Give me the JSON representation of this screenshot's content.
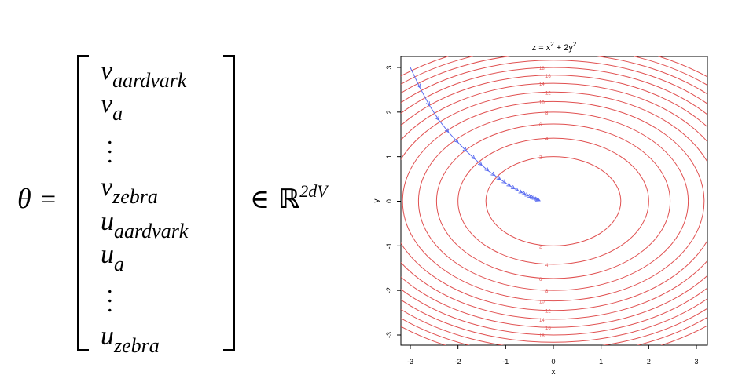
{
  "equation": {
    "lhs_symbol": "θ",
    "equals": "=",
    "entries": [
      {
        "base": "v",
        "sub": "aardvark"
      },
      {
        "base": "v",
        "sub": "a"
      },
      {
        "dots": true
      },
      {
        "base": "v",
        "sub": "zebra"
      },
      {
        "base": "u",
        "sub": "aardvark"
      },
      {
        "base": "u",
        "sub": "a"
      },
      {
        "dots": true
      },
      {
        "base": "u",
        "sub": "zebra"
      }
    ],
    "membership": "∈",
    "space": "ℝ",
    "exponent": "2dV"
  },
  "plot": {
    "title_main": "z = x",
    "title_sup1": "2",
    "title_mid": " + 2y",
    "title_sup2": "2",
    "xlabel": "x",
    "ylabel": "y",
    "xticks": [
      -3,
      -2,
      -1,
      0,
      1,
      2,
      3
    ],
    "yticks": [
      -3,
      -2,
      -1,
      0,
      1,
      2,
      3
    ],
    "xlim": [
      -3,
      3
    ],
    "ylim": [
      -3,
      3
    ],
    "contour_levels": [
      2,
      4,
      6,
      8,
      10,
      12,
      14,
      16,
      18,
      20,
      22,
      24,
      26
    ],
    "contour_color": "#e05050",
    "path_color": "#5a6cf0",
    "descent_path": [
      [
        -3.0,
        3.0
      ],
      [
        -2.8,
        2.55
      ],
      [
        -2.6,
        2.15
      ],
      [
        -2.4,
        1.82
      ],
      [
        -2.2,
        1.55
      ],
      [
        -2.0,
        1.32
      ],
      [
        -1.82,
        1.12
      ],
      [
        -1.65,
        0.95
      ],
      [
        -1.5,
        0.81
      ],
      [
        -1.36,
        0.68
      ],
      [
        -1.23,
        0.58
      ],
      [
        -1.11,
        0.49
      ],
      [
        -1.0,
        0.41
      ],
      [
        -0.9,
        0.34
      ],
      [
        -0.81,
        0.28
      ],
      [
        -0.73,
        0.23
      ],
      [
        -0.65,
        0.19
      ],
      [
        -0.58,
        0.15
      ],
      [
        -0.52,
        0.12
      ],
      [
        -0.46,
        0.09
      ],
      [
        -0.41,
        0.07
      ],
      [
        -0.37,
        0.05
      ],
      [
        -0.33,
        0.03
      ],
      [
        -0.3,
        0.02
      ],
      [
        -0.28,
        0.01
      ]
    ]
  }
}
